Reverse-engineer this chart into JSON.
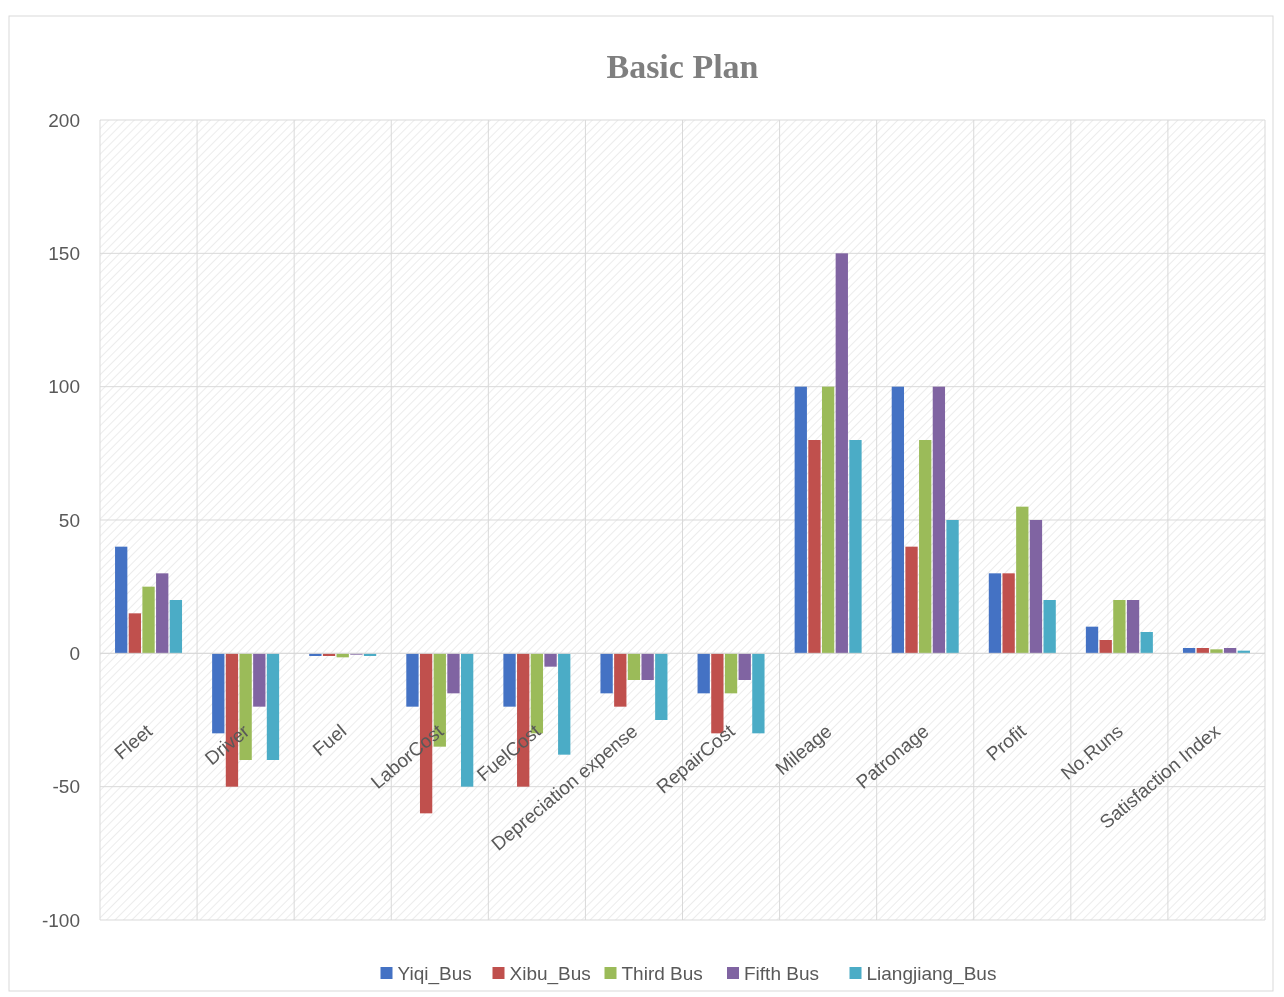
{
  "chart_data": {
    "type": "bar",
    "title": "Basic Plan",
    "categories": [
      "Fleet",
      "Driver",
      "Fuel",
      "LaborCost",
      "FuelCost",
      "Depreciation expense",
      "RepairCost",
      "Mileage",
      "Patronage",
      "Profit",
      "No.Runs",
      "Satisfaction Index"
    ],
    "series": [
      {
        "name": "Yiqi_Bus",
        "color": "#4472c4",
        "values": [
          40,
          -30,
          -1,
          -20,
          -20,
          -15,
          -15,
          100,
          100,
          30,
          10,
          2
        ]
      },
      {
        "name": "Xibu_Bus",
        "color": "#c0504d",
        "values": [
          15,
          -50,
          -1,
          -60,
          -50,
          -20,
          -30,
          80,
          40,
          30,
          5,
          2
        ]
      },
      {
        "name": "Third Bus",
        "color": "#9bbb59",
        "values": [
          25,
          -40,
          -1.5,
          -35,
          -30,
          -10,
          -15,
          100,
          80,
          55,
          20,
          1.5
        ]
      },
      {
        "name": "Fifth Bus",
        "color": "#8064a2",
        "values": [
          30,
          -20,
          -0.5,
          -15,
          -5,
          -10,
          -10,
          150,
          100,
          50,
          20,
          2
        ]
      },
      {
        "name": "Liangjiang_Bus",
        "color": "#4bacc6",
        "values": [
          20,
          -40,
          -1,
          -50,
          -38,
          -25,
          -30,
          80,
          50,
          20,
          8,
          1
        ]
      }
    ],
    "ylim": [
      -100,
      200
    ],
    "yticks": [
      -100,
      -50,
      0,
      50,
      100,
      150,
      200
    ],
    "grid": true,
    "legend": "bottom"
  }
}
